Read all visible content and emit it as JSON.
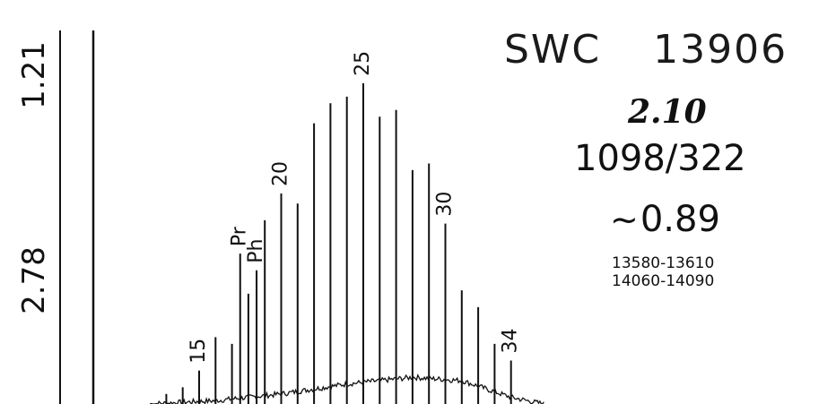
{
  "header": {
    "sample_prefix": "SWC",
    "sample_number": "13906",
    "ratio_italic": "2.10",
    "ratio_pair": "1098/322",
    "approx_symbol": "~",
    "approx_value": "0.89",
    "depth_ranges": [
      "13580-13610",
      "14060-14090"
    ]
  },
  "scale_labels": [
    "1.21",
    "2.78"
  ],
  "chart_data": {
    "type": "bar",
    "title": "",
    "xlabel": "",
    "ylabel": "",
    "ylim": [
      0,
      100
    ],
    "peak_labels": [
      {
        "text": "15",
        "carbon": 15
      },
      {
        "text": "Pr",
        "carbon": 17.5
      },
      {
        "text": "Ph",
        "carbon": 18.5
      },
      {
        "text": "20",
        "carbon": 20
      },
      {
        "text": "25",
        "carbon": 25
      },
      {
        "text": "30",
        "carbon": 30
      },
      {
        "text": "34",
        "carbon": 34
      }
    ],
    "series": [
      {
        "carbons": [
          13,
          14,
          15,
          16,
          17,
          17.5,
          18,
          18.5,
          19,
          20,
          21,
          22,
          23,
          24,
          25,
          26,
          27,
          28,
          29,
          30,
          31,
          32,
          33,
          34
        ],
        "values": [
          3,
          5,
          10,
          20,
          18,
          45,
          33,
          40,
          55,
          63,
          60,
          84,
          90,
          92,
          96,
          86,
          88,
          70,
          72,
          54,
          34,
          29,
          18,
          13
        ]
      }
    ],
    "baseline_hump": {
      "x": [
        12,
        16,
        20,
        24,
        28,
        31,
        34,
        36
      ],
      "values": [
        0,
        1,
        3,
        6,
        8,
        7,
        2,
        0
      ]
    }
  }
}
